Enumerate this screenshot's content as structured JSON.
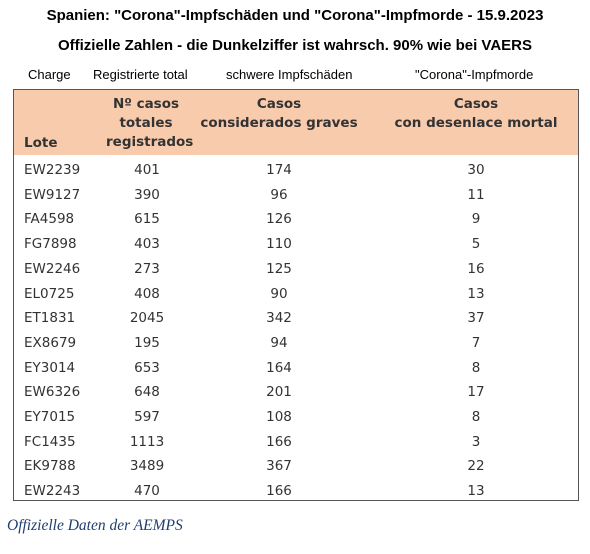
{
  "title_line1": "Spanien: \"Corona\"-Impfschäden und \"Corona\"-Impfmorde - 15.9.2023",
  "title_line2": "Offizielle Zahlen - die Dunkelziffer ist wahrsch. 90% wie bei VAERS",
  "german_headers": {
    "charge": "Charge",
    "registrierte_total": "Registrierte total",
    "schwere": "schwere Impfschäden",
    "impfmorde": "\"Corona\"-Impfmorde"
  },
  "spanish_headers": {
    "lote": "Lote",
    "casos_total_l1": "Nº casos",
    "casos_total_l2": "totales",
    "casos_total_l3": "registrados",
    "graves_l1": "Casos",
    "graves_l2": "considerados graves",
    "mortal_l1": "Casos",
    "mortal_l2": "con desenlace mortal"
  },
  "rows": [
    {
      "lote": "EW2239",
      "total": "401",
      "graves": "174",
      "mortal": "30"
    },
    {
      "lote": "EW9127",
      "total": "390",
      "graves": "96",
      "mortal": "11"
    },
    {
      "lote": "FA4598",
      "total": "615",
      "graves": "126",
      "mortal": "9"
    },
    {
      "lote": "FG7898",
      "total": "403",
      "graves": "110",
      "mortal": "5"
    },
    {
      "lote": "EW2246",
      "total": "273",
      "graves": "125",
      "mortal": "16"
    },
    {
      "lote": "EL0725",
      "total": "408",
      "graves": "90",
      "mortal": "13"
    },
    {
      "lote": "ET1831",
      "total": "2045",
      "graves": "342",
      "mortal": "37"
    },
    {
      "lote": "EX8679",
      "total": "195",
      "graves": "94",
      "mortal": "7"
    },
    {
      "lote": "EY3014",
      "total": "653",
      "graves": "164",
      "mortal": "8"
    },
    {
      "lote": "EW6326",
      "total": "648",
      "graves": "201",
      "mortal": "17"
    },
    {
      "lote": "EY7015",
      "total": "597",
      "graves": "108",
      "mortal": "8"
    },
    {
      "lote": "FC1435",
      "total": "1113",
      "graves": "166",
      "mortal": "3"
    },
    {
      "lote": "EK9788",
      "total": "3489",
      "graves": "367",
      "mortal": "22"
    },
    {
      "lote": "EW2243",
      "total": "470",
      "graves": "166",
      "mortal": "13"
    }
  ],
  "footer": "Offizielle Daten der AEMPS",
  "colors": {
    "header_bg": "#f8cbad",
    "footer_text": "#1f3f6e"
  }
}
